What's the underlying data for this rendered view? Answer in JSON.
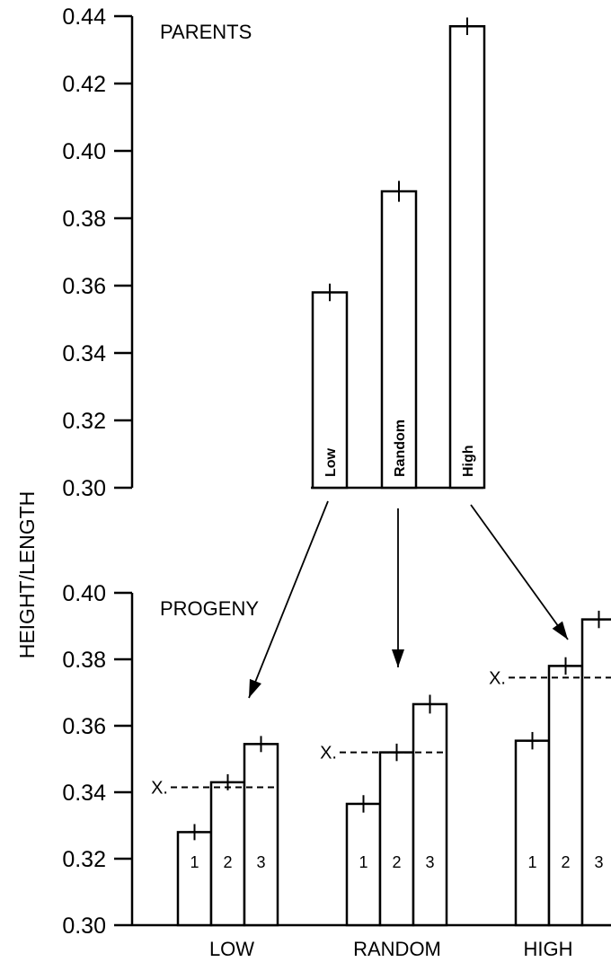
{
  "chart_data": [
    {
      "panel": "parents",
      "type": "bar",
      "title": "PARENTS",
      "ylabel": "HEIGHT/LENGTH",
      "ylim": [
        0.3,
        0.44
      ],
      "yticks": [
        "0.30",
        "0.32",
        "0.34",
        "0.36",
        "0.38",
        "0.40",
        "0.42",
        "0.44"
      ],
      "categories": [
        "Low",
        "Random",
        "High"
      ],
      "values": [
        0.358,
        0.388,
        0.437
      ],
      "error": [
        0.001,
        0.0015,
        0.001
      ]
    },
    {
      "panel": "progeny",
      "type": "bar",
      "title": "PROGENY",
      "ylabel": "HEIGHT/LENGTH",
      "ylim": [
        0.3,
        0.4
      ],
      "yticks": [
        "0.30",
        "0.32",
        "0.34",
        "0.36",
        "0.38",
        "0.40"
      ],
      "groups": [
        {
          "name": "LOW",
          "bar_labels": [
            "1",
            "2",
            "3"
          ],
          "values": [
            0.328,
            0.343,
            0.3545
          ],
          "error": [
            0.0008,
            0.0008,
            0.0008
          ],
          "mean_label": "X.",
          "mean": 0.3415
        },
        {
          "name": "RANDOM",
          "bar_labels": [
            "1",
            "2",
            "3"
          ],
          "values": [
            0.3365,
            0.352,
            0.3665
          ],
          "error": [
            0.001,
            0.001,
            0.0012
          ],
          "mean_label": "X.",
          "mean": 0.352
        },
        {
          "name": "HIGH",
          "bar_labels": [
            "1",
            "2",
            "3"
          ],
          "values": [
            0.3555,
            0.378,
            0.392
          ],
          "error": [
            0.001,
            0.001,
            0.001
          ],
          "mean_label": "X.",
          "mean": 0.3745
        }
      ]
    }
  ]
}
